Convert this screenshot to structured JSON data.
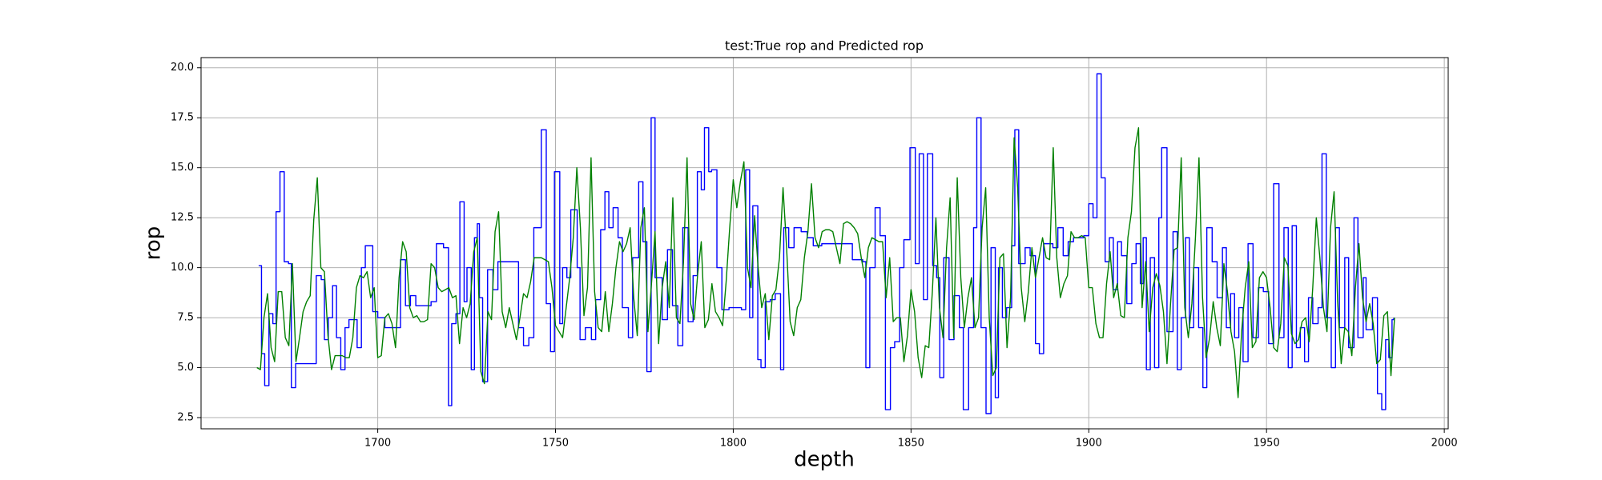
{
  "chart_data": {
    "type": "line",
    "title": "test:True rop and Predicted rop",
    "xlabel": "depth",
    "ylabel": "rop",
    "xlim": [
      1650.3,
      2001.1
    ],
    "ylim": [
      1.94,
      20.51
    ],
    "xticks": [
      1700,
      1750,
      1800,
      1850,
      1900,
      1950,
      2000
    ],
    "yticks": [
      2.5,
      {
        "value": 5,
        "label": "5.0"
      },
      7.5,
      {
        "value": 10,
        "label": "10.0"
      },
      12.5,
      {
        "value": 15,
        "label": "15.0"
      },
      17.5,
      {
        "value": 20,
        "label": "20.0"
      }
    ],
    "grid": true,
    "series": [
      {
        "color": "#0000ff",
        "drawstyle": "steps-post",
        "x": [
          1666.5,
          1667.3,
          1668.2,
          1669.4,
          1670.5,
          1671.4,
          1672.5,
          1673.7,
          1674.9,
          1675.7,
          1676.9,
          1682.7,
          1684.1,
          1685.0,
          1686.1,
          1687.3,
          1688.4,
          1689.6,
          1690.8,
          1691.9,
          1694.2,
          1695.4,
          1696.5,
          1698.6,
          1700,
          1702,
          1703.5,
          1706.4,
          1707.8,
          1709.2,
          1710.7,
          1715,
          1716.5,
          1718.5,
          1719.9,
          1720.8,
          1722,
          1723.1,
          1724.3,
          1725.1,
          1726.3,
          1727.2,
          1728,
          1728.6,
          1729.5,
          1730.9,
          1732.4,
          1733.8,
          1738.2,
          1739.6,
          1741,
          1742.5,
          1743.9,
          1746,
          1747.4,
          1748.6,
          1749.7,
          1751.2,
          1752,
          1753.2,
          1754.3,
          1756.1,
          1756.9,
          1758.4,
          1760.1,
          1761.3,
          1762.7,
          1763.9,
          1765,
          1766.2,
          1767.6,
          1768.8,
          1770.5,
          1771.7,
          1773.4,
          1774.6,
          1775.7,
          1776.9,
          1778,
          1780,
          1781.5,
          1782.9,
          1784.4,
          1785.8,
          1787.3,
          1788.7,
          1789.9,
          1791,
          1791.9,
          1793.1,
          1793.9,
          1795.4,
          1796.8,
          1798.8,
          1802.3,
          1803.5,
          1804.6,
          1805.5,
          1806.9,
          1807.8,
          1809,
          1810.4,
          1811.8,
          1813.3,
          1814.2,
          1815.6,
          1817.1,
          1819.1,
          1820.8,
          1822.5,
          1824.9,
          1827.7,
          1832.4,
          1833.5,
          1836.4,
          1837.3,
          1838.4,
          1839.9,
          1841.3,
          1842.8,
          1844.2,
          1845.4,
          1846.8,
          1848,
          1849.7,
          1851.2,
          1852.3,
          1853.5,
          1854.6,
          1856.1,
          1857.2,
          1858.1,
          1859.2,
          1860.7,
          1862.1,
          1863.6,
          1864.7,
          1866.2,
          1867.6,
          1868.5,
          1869.7,
          1871.1,
          1872.5,
          1873.7,
          1874.6,
          1875.7,
          1876.9,
          1878.3,
          1879.2,
          1880.3,
          1882.1,
          1883.5,
          1885,
          1886.1,
          1887.3,
          1888.7,
          1889.9,
          1891.3,
          1892.8,
          1894.2,
          1895.7,
          1898.6,
          1900,
          1901.2,
          1902.3,
          1903.5,
          1904.6,
          1905.8,
          1906.9,
          1908.1,
          1909.2,
          1910.7,
          1912.1,
          1913.3,
          1914.5,
          1915.3,
          1916.2,
          1917.3,
          1918.5,
          1919.7,
          1920.5,
          1922,
          1923.7,
          1924.9,
          1926,
          1927.2,
          1928.3,
          1929.5,
          1930.9,
          1932.1,
          1933.2,
          1934.7,
          1936.1,
          1937.6,
          1938.7,
          1939.9,
          1941,
          1942.2,
          1943.4,
          1944.8,
          1946.2,
          1947.7,
          1949.1,
          1950.6,
          1952,
          1953.5,
          1954.9,
          1956.1,
          1957.2,
          1958.4,
          1959.5,
          1960.7,
          1961.8,
          1963,
          1964.5,
          1965.6,
          1966.8,
          1968.2,
          1969.4,
          1970.5,
          1972,
          1973.1,
          1974.6,
          1975.7,
          1977.2,
          1978,
          1979.8,
          1981.2,
          1982.4,
          1983.5,
          1984.4,
          1985.3,
          1985.8
        ],
        "values": [
          10.1,
          5.7,
          4.1,
          7.7,
          7.2,
          12.8,
          14.8,
          10.3,
          10.2,
          4.0,
          5.2,
          9.6,
          9.4,
          6.4,
          7.5,
          9.1,
          6.5,
          4.9,
          7.0,
          7.4,
          6.0,
          10.0,
          11.1,
          7.8,
          7.5,
          7.0,
          7.0,
          10.4,
          8.1,
          8.6,
          8.1,
          8.3,
          11.2,
          11.0,
          3.1,
          7.2,
          7.7,
          13.3,
          8.3,
          10.0,
          4.9,
          11.5,
          12.2,
          8.5,
          4.3,
          9.9,
          8.9,
          10.3,
          10.3,
          7.0,
          6.1,
          6.5,
          12.0,
          16.9,
          8.2,
          5.8,
          14.8,
          7.2,
          10.0,
          9.5,
          12.9,
          10.0,
          6.4,
          7.0,
          6.4,
          8.4,
          11.9,
          13.8,
          12.0,
          13.0,
          11.5,
          8.0,
          6.5,
          10.5,
          14.3,
          11.3,
          4.8,
          17.5,
          9.5,
          7.4,
          10.9,
          8.1,
          6.1,
          12.0,
          7.3,
          9.6,
          14.8,
          13.9,
          17.0,
          14.8,
          14.9,
          10.0,
          7.9,
          8.0,
          7.9,
          14.9,
          7.5,
          13.1,
          5.4,
          5.0,
          8.3,
          8.4,
          8.7,
          4.9,
          12.0,
          11.0,
          12.0,
          11.8,
          11.5,
          11.1,
          11.2,
          11.2,
          11.2,
          10.4,
          10.3,
          5.0,
          10.0,
          13.0,
          11.6,
          2.9,
          6.0,
          6.3,
          10.0,
          11.4,
          16.0,
          10.2,
          15.7,
          8.4,
          15.7,
          10.1,
          9.5,
          4.5,
          10.5,
          6.4,
          8.6,
          7.0,
          2.9,
          7.0,
          12.0,
          17.5,
          7.0,
          2.7,
          11.0,
          3.5,
          10.0,
          7.5,
          8.0,
          11.1,
          16.9,
          10.2,
          11.0,
          10.6,
          6.2,
          5.7,
          11.2,
          11.2,
          11.0,
          12.0,
          10.6,
          11.3,
          11.5,
          11.6,
          13.2,
          12.5,
          19.7,
          14.5,
          10.3,
          11.5,
          8.9,
          11.3,
          10.6,
          8.2,
          10.2,
          11.2,
          9.2,
          11.5,
          4.9,
          10.5,
          5.0,
          12.5,
          16.0,
          6.8,
          11.8,
          4.9,
          7.5,
          11.5,
          7.0,
          10.0,
          7.0,
          4.0,
          12.0,
          10.3,
          8.5,
          11.0,
          7.0,
          8.7,
          6.5,
          8.0,
          5.3,
          11.2,
          6.5,
          9.0,
          8.8,
          6.2,
          14.2,
          6.5,
          12.0,
          5.0,
          12.1,
          6.0,
          7.0,
          5.3,
          8.5,
          7.2,
          8.0,
          15.7,
          7.5,
          5.0,
          12.0,
          7.0,
          10.5,
          6.0,
          12.5,
          6.5,
          9.5,
          6.9,
          8.5,
          3.7,
          2.9,
          6.4,
          5.5,
          7.4,
          7.5
        ]
      },
      {
        "color": "#008000",
        "x": [
          1666,
          1667,
          1668,
          1669,
          1670,
          1671,
          1672,
          1673,
          1674,
          1675,
          1676,
          1677,
          1678,
          1679,
          1680,
          1681,
          1682,
          1683,
          1684,
          1685,
          1686,
          1687,
          1688,
          1689,
          1690,
          1691,
          1692,
          1693,
          1694,
          1695,
          1696,
          1697,
          1698,
          1699,
          1700,
          1701,
          1702,
          1703,
          1704,
          1705,
          1706,
          1707,
          1708,
          1709,
          1710,
          1711,
          1712,
          1713,
          1714,
          1715,
          1716,
          1717,
          1718,
          1719,
          1720,
          1721,
          1722,
          1723,
          1724,
          1725,
          1726,
          1727,
          1728,
          1729,
          1730,
          1731,
          1732,
          1733,
          1734,
          1735,
          1736,
          1737,
          1738,
          1739,
          1740,
          1741,
          1742,
          1743,
          1744,
          1745,
          1746,
          1747,
          1748,
          1749,
          1750,
          1751,
          1752,
          1753,
          1754,
          1755,
          1756,
          1757,
          1758,
          1759,
          1760,
          1761,
          1762,
          1763,
          1764,
          1765,
          1766,
          1767,
          1768,
          1769,
          1770,
          1771,
          1772,
          1773,
          1774,
          1775,
          1776,
          1777,
          1778,
          1779,
          1780,
          1781,
          1782,
          1783,
          1784,
          1785,
          1786,
          1787,
          1788,
          1789,
          1790,
          1791,
          1792,
          1793,
          1794,
          1795,
          1796,
          1797,
          1798,
          1799,
          1800,
          1801,
          1802,
          1803,
          1804,
          1805,
          1806,
          1807,
          1808,
          1809,
          1810,
          1811,
          1812,
          1813,
          1814,
          1815,
          1816,
          1817,
          1818,
          1819,
          1820,
          1821,
          1822,
          1823,
          1824,
          1825,
          1826,
          1827,
          1828,
          1829,
          1830,
          1831,
          1832,
          1833,
          1834,
          1835,
          1836,
          1837,
          1838,
          1839,
          1840,
          1841,
          1842,
          1843,
          1844,
          1845,
          1846,
          1847,
          1848,
          1849,
          1850,
          1851,
          1852,
          1853,
          1854,
          1855,
          1856,
          1857,
          1858,
          1859,
          1860,
          1861,
          1862,
          1863,
          1864,
          1865,
          1866,
          1867,
          1868,
          1869,
          1870,
          1871,
          1872,
          1873,
          1874,
          1875,
          1876,
          1877,
          1878,
          1879,
          1880,
          1881,
          1882,
          1883,
          1884,
          1885,
          1886,
          1887,
          1888,
          1889,
          1890,
          1891,
          1892,
          1893,
          1894,
          1895,
          1896,
          1897,
          1898,
          1899,
          1900,
          1901,
          1902,
          1903,
          1904,
          1905,
          1906,
          1907,
          1908,
          1909,
          1910,
          1911,
          1912,
          1913,
          1914,
          1915,
          1916,
          1917,
          1918,
          1919,
          1920,
          1921,
          1922,
          1923,
          1924,
          1925,
          1926,
          1927,
          1928,
          1929,
          1930,
          1931,
          1932,
          1933,
          1934,
          1935,
          1936,
          1937,
          1938,
          1939,
          1940,
          1941,
          1942,
          1943,
          1944,
          1945,
          1946,
          1947,
          1948,
          1949,
          1950,
          1951,
          1952,
          1953,
          1954,
          1955,
          1956,
          1957,
          1958,
          1959,
          1960,
          1961,
          1962,
          1963,
          1964,
          1965,
          1966,
          1967,
          1968,
          1969,
          1970,
          1971,
          1972,
          1973,
          1974,
          1975,
          1976,
          1977,
          1978,
          1979,
          1980,
          1981,
          1982,
          1983,
          1984,
          1985,
          1986
        ],
        "values": [
          5.0,
          4.9,
          7.5,
          8.7,
          6.0,
          5.3,
          8.8,
          8.8,
          6.5,
          6.1,
          10.2,
          5.3,
          6.5,
          7.8,
          8.3,
          8.6,
          12.4,
          14.5,
          10.0,
          9.8,
          6.6,
          4.9,
          5.6,
          5.6,
          5.6,
          5.5,
          5.5,
          6.5,
          9.0,
          9.6,
          9.5,
          9.8,
          8.5,
          9.0,
          5.5,
          5.6,
          7.5,
          7.7,
          7.2,
          6.0,
          9.5,
          11.3,
          10.8,
          8.0,
          7.5,
          7.6,
          7.3,
          7.3,
          7.4,
          10.2,
          10.0,
          9.0,
          8.8,
          8.9,
          9.0,
          8.5,
          8.6,
          6.2,
          8.0,
          7.5,
          8.2,
          10.8,
          11.5,
          4.8,
          4.2,
          7.8,
          7.4,
          11.8,
          12.8,
          7.8,
          7.0,
          8.0,
          7.2,
          6.4,
          7.5,
          8.7,
          8.5,
          9.3,
          10.5,
          10.5,
          10.5,
          10.4,
          10.3,
          9.0,
          7.1,
          6.8,
          6.5,
          8.0,
          9.5,
          11.5,
          15.0,
          12.0,
          7.6,
          9.0,
          15.5,
          8.8,
          7.0,
          6.8,
          8.8,
          6.8,
          8.2,
          10.0,
          11.3,
          10.8,
          11.2,
          12.0,
          8.5,
          6.6,
          12.0,
          13.0,
          6.8,
          9.2,
          11.8,
          6.2,
          9.0,
          10.3,
          8.0,
          13.5,
          7.5,
          7.2,
          10.3,
          15.5,
          8.2,
          7.4,
          9.7,
          11.3,
          7.0,
          7.4,
          9.2,
          7.8,
          7.5,
          7.1,
          9.3,
          12.0,
          14.4,
          13.0,
          14.3,
          15.3,
          10.0,
          9.0,
          12.6,
          10.0,
          8.0,
          8.7,
          6.4,
          8.6,
          8.9,
          10.5,
          14.0,
          11.0,
          7.3,
          6.6,
          8.0,
          8.4,
          10.5,
          11.8,
          14.2,
          11.5,
          11.0,
          11.8,
          11.9,
          11.9,
          11.8,
          11.0,
          10.2,
          12.2,
          12.3,
          12.2,
          12.0,
          11.7,
          10.5,
          9.5,
          11.0,
          11.5,
          11.4,
          11.3,
          11.3,
          8.5,
          10.5,
          7.3,
          7.5,
          7.5,
          5.3,
          6.6,
          8.9,
          7.8,
          5.5,
          4.5,
          6.1,
          6.0,
          8.8,
          12.5,
          8.0,
          6.5,
          11.0,
          13.5,
          6.5,
          14.5,
          9.5,
          7.0,
          8.5,
          9.5,
          7.0,
          7.5,
          12.0,
          14.0,
          7.5,
          4.6,
          5.0,
          10.5,
          10.7,
          6.0,
          8.5,
          16.5,
          14.0,
          9.0,
          7.3,
          8.8,
          11.0,
          9.5,
          10.5,
          11.5,
          10.5,
          10.4,
          16.0,
          10.5,
          8.5,
          9.2,
          9.6,
          11.8,
          11.5,
          11.5,
          11.6,
          11.5,
          9.0,
          9.0,
          7.2,
          6.5,
          6.5,
          9.2,
          10.8,
          8.5,
          9.2,
          7.6,
          7.5,
          11.5,
          12.8,
          16.0,
          17.0,
          8.0,
          10.3,
          6.8,
          9.0,
          9.7,
          9.1,
          7.8,
          5.2,
          8.2,
          10.9,
          11.0,
          15.5,
          8.0,
          6.5,
          8.2,
          11.5,
          15.5,
          8.5,
          5.5,
          6.5,
          8.3,
          7.0,
          6.1,
          10.2,
          8.8,
          6.8,
          5.8,
          3.5,
          6.8,
          9.0,
          10.3,
          6.0,
          6.3,
          9.5,
          9.8,
          9.5,
          8.0,
          6.0,
          5.8,
          7.2,
          10.5,
          10.1,
          6.7,
          6.2,
          6.4,
          7.3,
          7.5,
          6.3,
          9.0,
          12.5,
          10.5,
          8.0,
          6.8,
          12.0,
          13.8,
          8.3,
          5.2,
          7.0,
          6.8,
          5.6,
          9.0,
          11.2,
          8.5,
          7.3,
          8.2,
          7.2,
          5.2,
          5.4,
          7.6,
          7.8,
          4.6,
          7.5
        ]
      }
    ]
  }
}
